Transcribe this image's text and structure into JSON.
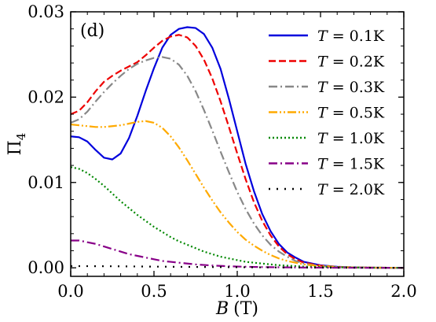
{
  "chart_data": {
    "type": "line",
    "panel_label": "(d)",
    "xlabel_var": "B",
    "xlabel_unit": "(T)",
    "ylabel_main": "Π",
    "ylabel_sub": "4",
    "xlim": [
      0,
      2
    ],
    "ylim": [
      -0.001,
      0.03
    ],
    "xticks": [
      0,
      0.5,
      1.0,
      1.5,
      2.0
    ],
    "xtick_labels": [
      "0.0",
      "0.5",
      "1.0",
      "1.5",
      "2.0"
    ],
    "yticks": [
      0,
      0.01,
      0.02,
      0.03
    ],
    "ytick_labels": [
      "0.00",
      "0.01",
      "0.02",
      "0.03"
    ],
    "grid": false,
    "legend_position": "top-right",
    "series": [
      {
        "name": "T = 0.1K",
        "legend_var": "T",
        "legend_value": "= 0.1K",
        "color": "#0000dd",
        "dash": "solid",
        "x": [
          0,
          0.05,
          0.1,
          0.15,
          0.2,
          0.25,
          0.3,
          0.35,
          0.4,
          0.45,
          0.5,
          0.55,
          0.6,
          0.65,
          0.7,
          0.75,
          0.8,
          0.85,
          0.9,
          0.95,
          1.0,
          1.05,
          1.1,
          1.15,
          1.2,
          1.25,
          1.3,
          1.35,
          1.4,
          1.5,
          1.6,
          1.7,
          1.8,
          1.9,
          2.0
        ],
        "y": [
          0.0154,
          0.0153,
          0.0148,
          0.0138,
          0.0129,
          0.0127,
          0.0134,
          0.0152,
          0.0178,
          0.0207,
          0.0234,
          0.0258,
          0.0273,
          0.028,
          0.0282,
          0.0281,
          0.0274,
          0.0258,
          0.0233,
          0.0198,
          0.016,
          0.0122,
          0.009,
          0.0063,
          0.0043,
          0.0028,
          0.0018,
          0.0012,
          0.0007,
          0.0003,
          0.00012,
          5e-05,
          2e-05,
          1e-05,
          0.0
        ]
      },
      {
        "name": "T = 0.2K",
        "legend_var": "T",
        "legend_value": "= 0.2K",
        "color": "#ee0000",
        "dash": "dashed",
        "x": [
          0,
          0.05,
          0.1,
          0.15,
          0.2,
          0.25,
          0.3,
          0.35,
          0.4,
          0.45,
          0.5,
          0.55,
          0.6,
          0.65,
          0.7,
          0.75,
          0.8,
          0.85,
          0.9,
          0.95,
          1.0,
          1.05,
          1.1,
          1.15,
          1.2,
          1.25,
          1.3,
          1.35,
          1.4,
          1.5,
          1.6,
          1.7,
          1.8,
          1.9,
          2.0
        ],
        "y": [
          0.018,
          0.0184,
          0.0194,
          0.0207,
          0.0218,
          0.0225,
          0.0231,
          0.0236,
          0.0241,
          0.0249,
          0.0258,
          0.0266,
          0.0271,
          0.0273,
          0.027,
          0.026,
          0.0244,
          0.0222,
          0.0195,
          0.0165,
          0.0134,
          0.0104,
          0.0077,
          0.0055,
          0.0038,
          0.0025,
          0.0016,
          0.001,
          0.0006,
          0.00025,
          0.0001,
          4e-05,
          2e-05,
          1e-05,
          0.0
        ]
      },
      {
        "name": "T = 0.3K",
        "legend_var": "T",
        "legend_value": "= 0.3K",
        "color": "#888888",
        "dash": "dashdot",
        "x": [
          0,
          0.05,
          0.1,
          0.15,
          0.2,
          0.25,
          0.3,
          0.35,
          0.4,
          0.45,
          0.5,
          0.55,
          0.6,
          0.65,
          0.7,
          0.75,
          0.8,
          0.85,
          0.9,
          0.95,
          1.0,
          1.05,
          1.1,
          1.15,
          1.2,
          1.25,
          1.3,
          1.35,
          1.4,
          1.5,
          1.6,
          1.7,
          1.8,
          1.9,
          2.0
        ],
        "y": [
          0.017,
          0.0174,
          0.0183,
          0.0195,
          0.0206,
          0.0216,
          0.0225,
          0.0233,
          0.0239,
          0.0243,
          0.0246,
          0.0247,
          0.0245,
          0.0238,
          0.0225,
          0.0207,
          0.0185,
          0.0161,
          0.0136,
          0.0112,
          0.0089,
          0.0069,
          0.0052,
          0.0038,
          0.0027,
          0.0019,
          0.0013,
          0.0008,
          0.0005,
          0.0002,
          8e-05,
          3e-05,
          1e-05,
          0.0,
          0.0
        ]
      },
      {
        "name": "T = 0.5K",
        "legend_var": "T",
        "legend_value": "= 0.5K",
        "color": "#ffaa00",
        "dash": "dashdotdot",
        "x": [
          0,
          0.05,
          0.1,
          0.15,
          0.2,
          0.25,
          0.3,
          0.35,
          0.4,
          0.45,
          0.5,
          0.55,
          0.6,
          0.65,
          0.7,
          0.75,
          0.8,
          0.85,
          0.9,
          0.95,
          1.0,
          1.05,
          1.1,
          1.15,
          1.2,
          1.25,
          1.3,
          1.35,
          1.4,
          1.5,
          1.6,
          1.7,
          1.8,
          1.9,
          2.0
        ],
        "y": [
          0.0168,
          0.0167,
          0.0166,
          0.0165,
          0.0165,
          0.0166,
          0.0167,
          0.0169,
          0.0171,
          0.0172,
          0.017,
          0.0164,
          0.0154,
          0.0141,
          0.0126,
          0.011,
          0.0094,
          0.0079,
          0.0065,
          0.0053,
          0.0042,
          0.0033,
          0.0026,
          0.002,
          0.0015,
          0.0011,
          0.0008,
          0.0006,
          0.0004,
          0.0002,
          0.0001,
          4e-05,
          2e-05,
          1e-05,
          0.0
        ]
      },
      {
        "name": "T = 1.0K",
        "legend_var": "T",
        "legend_value": "= 1.0K",
        "color": "#008800",
        "dash": "dotted",
        "x": [
          0,
          0.05,
          0.1,
          0.15,
          0.2,
          0.25,
          0.3,
          0.35,
          0.4,
          0.45,
          0.5,
          0.55,
          0.6,
          0.65,
          0.7,
          0.75,
          0.8,
          0.85,
          0.9,
          0.95,
          1.0,
          1.05,
          1.1,
          1.15,
          1.2,
          1.25,
          1.3,
          1.35,
          1.4,
          1.5,
          1.6,
          1.7,
          1.8,
          1.9,
          2.0
        ],
        "y": [
          0.0118,
          0.0116,
          0.0111,
          0.0104,
          0.0096,
          0.0087,
          0.0078,
          0.007,
          0.0062,
          0.0055,
          0.0048,
          0.0042,
          0.0036,
          0.0031,
          0.0027,
          0.0023,
          0.0019,
          0.0016,
          0.0013,
          0.0011,
          0.0009,
          0.0007,
          0.0006,
          0.0005,
          0.0004,
          0.0003,
          0.00025,
          0.0002,
          0.00015,
          0.0001,
          6e-05,
          4e-05,
          2e-05,
          1e-05,
          0.0
        ]
      },
      {
        "name": "T = 1.5K",
        "legend_var": "T",
        "legend_value": "= 1.5K",
        "color": "#880088",
        "dash": "dashdot",
        "x": [
          0,
          0.05,
          0.1,
          0.15,
          0.2,
          0.25,
          0.3,
          0.35,
          0.4,
          0.45,
          0.5,
          0.55,
          0.6,
          0.65,
          0.7,
          0.75,
          0.8,
          0.85,
          0.9,
          0.95,
          1.0,
          1.1,
          1.2,
          1.3,
          1.4,
          1.5,
          1.6,
          1.7,
          1.8,
          1.9,
          2.0
        ],
        "y": [
          0.0032,
          0.0032,
          0.003,
          0.0028,
          0.0025,
          0.0022,
          0.0019,
          0.0016,
          0.0014,
          0.0012,
          0.001,
          0.0008,
          0.0007,
          0.0006,
          0.0005,
          0.0004,
          0.00033,
          0.00027,
          0.00022,
          0.00018,
          0.00015,
          0.0001,
          7e-05,
          5e-05,
          3e-05,
          2e-05,
          1e-05,
          1e-05,
          0.0,
          0.0,
          0.0
        ]
      },
      {
        "name": "T = 2.0K",
        "legend_var": "T",
        "legend_value": "= 2.0K",
        "color": "#000000",
        "dash": "dotted-sparse",
        "x": [
          0,
          0.25,
          0.5,
          0.75,
          1.0,
          1.25,
          1.5,
          1.75,
          2.0
        ],
        "y": [
          0.0002,
          0.00018,
          0.00014,
          0.0001,
          7e-05,
          4e-05,
          2e-05,
          1e-05,
          0.0
        ]
      }
    ]
  }
}
